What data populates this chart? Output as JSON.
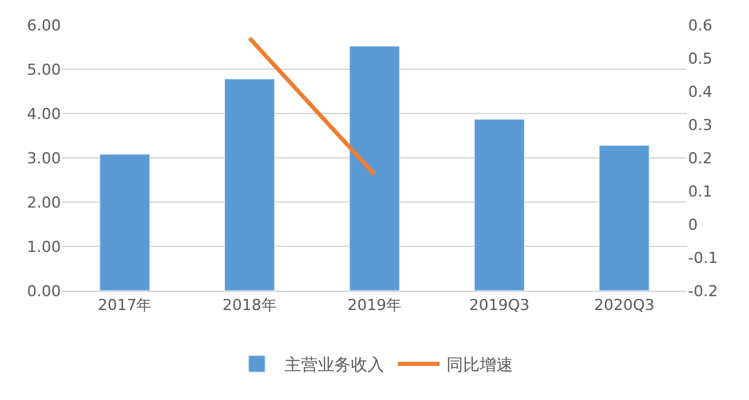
{
  "chart_data": {
    "type": "bar",
    "categories": [
      "2017年",
      "2018年",
      "2019年",
      "2019Q3",
      "2020Q3"
    ],
    "series": [
      {
        "name": "主营业务收入",
        "color": "#5b9bd5",
        "values": [
          3.08,
          4.78,
          5.52,
          3.87,
          3.28
        ]
      },
      {
        "name": "同比增速",
        "type": "line",
        "axis": "y2",
        "color": "#ed7d31",
        "values": [
          null,
          0.56,
          0.15,
          null,
          null
        ],
        "marker": "none",
        "line_style": "solid"
      }
    ],
    "ylim": [
      0,
      6
    ],
    "yticks": [
      {
        "value": 0,
        "label": "0.00"
      },
      {
        "value": 1,
        "label": "1.00"
      },
      {
        "value": 2,
        "label": "2.00"
      },
      {
        "value": 3,
        "label": "3.00"
      },
      {
        "value": 4,
        "label": "4.00"
      },
      {
        "value": 5,
        "label": "5.00"
      },
      {
        "value": 6,
        "label": "6.00"
      }
    ],
    "y2lim": [
      -0.2,
      0.6
    ],
    "y2ticks": [
      -0.2,
      -0.1,
      0,
      0.1,
      0.2,
      0.3,
      0.4,
      0.5,
      0.6
    ],
    "grid": "y",
    "legend": "bottom"
  }
}
